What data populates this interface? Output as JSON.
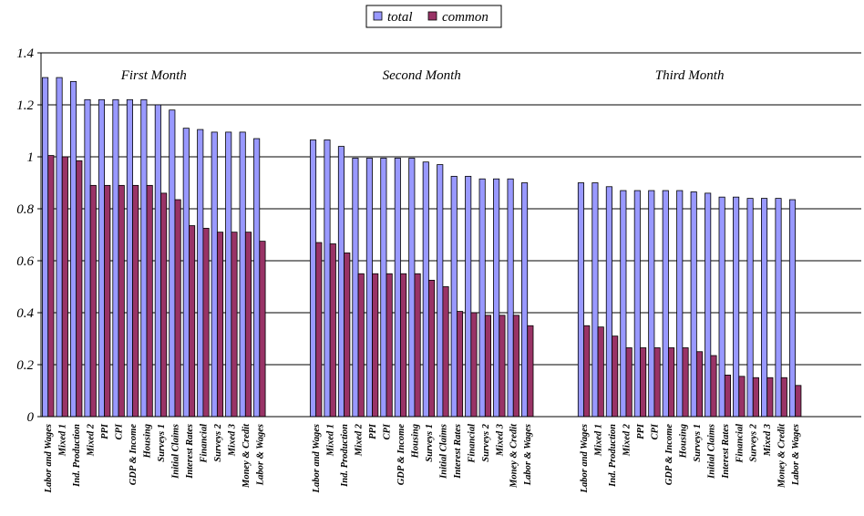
{
  "chart_data": {
    "type": "bar",
    "title": "",
    "xlabel": "",
    "ylabel": "",
    "ylim": [
      0,
      1.4
    ],
    "yticks": [
      "0",
      "0.2",
      "0.4",
      "0.6",
      "0.8",
      "1",
      "1.2",
      "1.4"
    ],
    "grid": true,
    "legend": {
      "position": "top-center",
      "entries": [
        "total",
        "common"
      ]
    },
    "colors": {
      "total": "#9999ff",
      "common": "#993366",
      "grid": "#000000"
    },
    "groups": [
      {
        "title": "First Month",
        "categories": [
          "Labor and Wages",
          "Mixed 1",
          "Ind. Production",
          "Mixed 2",
          "PPI",
          "CPI",
          "GDP & Income",
          "Housing",
          "Surveys 1",
          "Initial Claims",
          "Interest Rates",
          "Financial",
          "Surveys 2",
          "Mixed 3",
          "Money & Credit",
          "Labor & Wages"
        ],
        "series": [
          {
            "name": "total",
            "values": [
              1.305,
              1.305,
              1.29,
              1.22,
              1.22,
              1.22,
              1.22,
              1.22,
              1.2,
              1.18,
              1.11,
              1.105,
              1.095,
              1.095,
              1.095,
              1.07
            ]
          },
          {
            "name": "common",
            "values": [
              1.005,
              1.0,
              0.985,
              0.89,
              0.89,
              0.89,
              0.89,
              0.89,
              0.86,
              0.835,
              0.735,
              0.725,
              0.71,
              0.71,
              0.71,
              0.675
            ]
          }
        ]
      },
      {
        "title": "Second Month",
        "categories": [
          "Labor and Wages",
          "Mixed 1",
          "Ind. Production",
          "Mixed 2",
          "PPI",
          "CPI",
          "GDP & Income",
          "Housing",
          "Surveys 1",
          "Initial Claims",
          "Interest Rates",
          "Financial",
          "Surveys 2",
          "Mixed 3",
          "Money & Credit",
          "Labor & Wages"
        ],
        "series": [
          {
            "name": "total",
            "values": [
              1.065,
              1.065,
              1.04,
              0.995,
              0.995,
              0.995,
              0.995,
              0.995,
              0.98,
              0.97,
              0.925,
              0.925,
              0.915,
              0.915,
              0.915,
              0.9
            ]
          },
          {
            "name": "common",
            "values": [
              0.67,
              0.665,
              0.63,
              0.55,
              0.55,
              0.55,
              0.55,
              0.55,
              0.525,
              0.5,
              0.405,
              0.4,
              0.39,
              0.39,
              0.39,
              0.35
            ]
          }
        ]
      },
      {
        "title": "Third Month",
        "categories": [
          "Labor and Wages",
          "Mixed 1",
          "Ind. Production",
          "Mixed 2",
          "PPI",
          "CPI",
          "GDP & Income",
          "Housing",
          "Surveys 1",
          "Initial Claims",
          "Interest Rates",
          "Financial",
          "Surveys 2",
          "Mixed 3",
          "Money & Credit",
          "Labor & Wages"
        ],
        "series": [
          {
            "name": "total",
            "values": [
              0.9,
              0.9,
              0.885,
              0.87,
              0.87,
              0.87,
              0.87,
              0.87,
              0.865,
              0.86,
              0.845,
              0.845,
              0.84,
              0.84,
              0.84,
              0.835
            ]
          },
          {
            "name": "common",
            "values": [
              0.35,
              0.345,
              0.31,
              0.265,
              0.265,
              0.265,
              0.265,
              0.265,
              0.25,
              0.235,
              0.16,
              0.155,
              0.15,
              0.15,
              0.15,
              0.12
            ]
          }
        ]
      }
    ]
  }
}
